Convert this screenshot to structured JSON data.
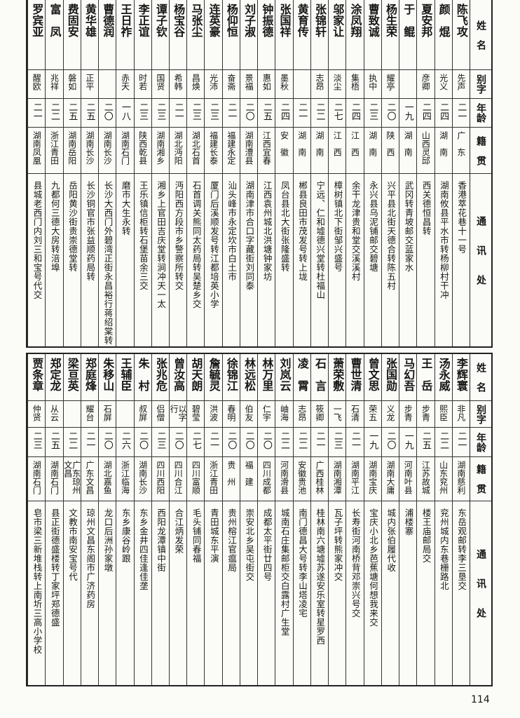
{
  "headers": {
    "name": "姓　名",
    "alias": "别字",
    "age": "年龄",
    "native": "籍　贯",
    "address": "通讯处"
  },
  "top_table": [
    {
      "name": "陈飞攻",
      "alias": "先声",
      "age": "二一",
      "native": "广　东",
      "address": "香港萃花巷十一号"
    },
    {
      "name": "颜　焜",
      "alias": "光义",
      "age": "二四",
      "native": "湖　南",
      "address": "湖南攸县平水市转杨柳村干冲"
    },
    {
      "name": "夏安邦",
      "alias": "彦卿",
      "age": "二四",
      "native": "山西灵邱",
      "address": "西关德恒昌转"
    },
    {
      "name": "于　鲲",
      "alias": "",
      "age": "一九",
      "native": "湖　南",
      "address": "武冈转青坡邮交蓝家水"
    },
    {
      "name": "杨生荣",
      "alias": "耀亭",
      "age": "二〇",
      "native": "陕　西",
      "address": "兴平县北街天德合转陈五村"
    },
    {
      "name": "曹致诚",
      "alias": "执中",
      "age": "二三",
      "native": "湖　南",
      "address": "永兴县乌泥铺邮交碧塘"
    },
    {
      "name": "涂凤翔",
      "alias": "集梧",
      "age": "二四",
      "native": "江　西",
      "address": "余干龙津贵和堂交溪溪村"
    },
    {
      "name": "邬家让",
      "alias": "淡尘",
      "age": "二七",
      "native": "江　西",
      "address": "樟树镇北下街邹兴盛号"
    },
    {
      "name": "张锦轩",
      "alias": "志昂",
      "age": "二二",
      "native": "湖　南",
      "address": "宁远、仁和墟德兴堂转杜福山"
    },
    {
      "name": "黄育传",
      "alias": "",
      "age": "二一",
      "native": "湖　南",
      "address": "郴县良田市茂发号转上垅"
    },
    {
      "name": "张国祥",
      "alias": "墨秋",
      "age": "二四",
      "native": "安　徽",
      "address": "凤台县北大街张隆盛转"
    },
    {
      "name": "钟振德",
      "alias": "惠如",
      "age": "二五",
      "native": "江西宜春",
      "address": "江西袁州城北洪塘钟家坊"
    },
    {
      "name": "刘子淑",
      "alias": "景福",
      "age": "二〇",
      "native": "湖南澧县",
      "address": "湖南津市合口字藏街刘同泰"
    },
    {
      "name": "杨仰恒",
      "alias": "奋斋",
      "age": "二一",
      "native": "福建永定",
      "address": "汕头峰市永定坎市白土市"
    },
    {
      "name": "连英豪",
      "alias": "光沛",
      "age": "二三",
      "native": "福建长泰",
      "address": "厦门后溪顺发号转江都培英小学"
    },
    {
      "name": "马张尘",
      "alias": "昌焕",
      "age": "二三",
      "native": "湖北石首",
      "address": "石首调关熊同太药局转吴楚乡交"
    },
    {
      "name": "杨宝谷",
      "alias": "希韩",
      "age": "二一",
      "native": "湖北沔阳",
      "address": "沔阳西方段市乡警察所转交"
    },
    {
      "name": "谭子钦",
      "alias": "国贤",
      "age": "二三",
      "native": "湖南湘乡",
      "address": "湘乡上官田吉庆堂转涧冲天一太"
    },
    {
      "name": "李正谊",
      "alias": "时若",
      "age": "二三",
      "native": "陕西乾县",
      "address": "王乐镇信柜转石堡苗余三交"
    },
    {
      "name": "王日祚",
      "alias": "赤天",
      "age": "一八",
      "native": "湖南石门",
      "address": "磨市大生永转"
    },
    {
      "name": "曹德润",
      "alias": "",
      "age": "二〇",
      "native": "湖南长沙",
      "address": "长沙大西门外碧湾正街永昌裕行蒋绍棠转"
    },
    {
      "name": "黄华雄",
      "alias": "正平",
      "age": "二五",
      "native": "湖南长沙",
      "address": "长沙铜官市张益顺药局转"
    },
    {
      "name": "费固安",
      "alias": "磐如",
      "age": "二五",
      "native": "湖南岳阳",
      "address": "岳阳黄沙街贵崇德堂转"
    },
    {
      "name": "富　凤",
      "alias": "兆祥",
      "age": "二二",
      "native": "浙江青田",
      "address": "九都何三德大房转涪埠"
    },
    {
      "name": "罗宾亚",
      "alias": "醒欧",
      "age": "二一",
      "native": "湖南凤凰",
      "address": "县城老西门内刘三和宝号代交"
    }
  ],
  "bottom_table": [
    {
      "name": "李辉寰",
      "alias": "非凡",
      "age": "二一",
      "native": "湖南慈利",
      "address": "东岳观邮转李三垦交"
    },
    {
      "name": "汤永威",
      "alias": "熙臣",
      "age": "二二",
      "native": "山东兖州",
      "address": "兖州城内东巷栅路北"
    },
    {
      "name": "王　岳",
      "alias": "步青",
      "age": "二五",
      "native": "江苏故城",
      "address": "楼王庙邮局交"
    },
    {
      "name": "马幻吾",
      "alias": "步青",
      "age": "一九",
      "native": "河南叶县",
      "address": "浦楼寨"
    },
    {
      "name": "张国勋",
      "alias": "义龙",
      "age": "二〇",
      "native": "湖南大庸",
      "address": "城内张伯履代收"
    },
    {
      "name": "曾文思",
      "alias": "荣五",
      "age": "一九",
      "native": "湖南宝庆",
      "address": "宝庆小北乡芭蕉塘何想我来交"
    },
    {
      "name": "曹世清",
      "alias": "石清",
      "age": "二一",
      "native": "湖南平江",
      "address": "长寿街河南桥背邓崇兴号交"
    },
    {
      "name": "萧荣敷",
      "alias": "一飞",
      "age": "二三",
      "native": "湖南湘潭",
      "address": "瓦子坪转熊家冲交"
    },
    {
      "name": "石　言",
      "alias": "筱卿",
      "age": "二一",
      "native": "广西桂林",
      "address": "桂林南六塘墟苏遂安乐室转星罗西"
    },
    {
      "name": "凌　霄",
      "alias": "志昂",
      "age": "二二",
      "native": "安徽贵池",
      "address": "南门德昌大号转李山塔凌宅"
    },
    {
      "name": "刘岚云",
      "alias": "岫海",
      "age": "二二",
      "native": "河南滑县",
      "address": "城南石庄集邮柜交白露村广生堂"
    },
    {
      "name": "林万里",
      "alias": "仁宇",
      "age": "二〇",
      "native": "四川成都",
      "address": "成都太平街廿四号"
    },
    {
      "name": "林远松",
      "alias": "伯友",
      "age": "二〇",
      "native": "福　建",
      "address": "崇安北乡吴屯街交"
    },
    {
      "name": "徐锦江",
      "alias": "春明",
      "age": "二〇",
      "native": "贵　州",
      "address": "贵州榕江官瘟局"
    },
    {
      "name": "詹毓灵",
      "alias": "洪波",
      "age": "二一",
      "native": "浙江青田",
      "address": "青田城东平演"
    },
    {
      "name": "胡天朗",
      "alias": "碧莹",
      "age": "二七",
      "native": "四川富顺",
      "address": "毛头铺同春福"
    },
    {
      "name": "曾汝高",
      "alias": "以字行",
      "age": "二〇",
      "native": "四川合江",
      "address": "合江炳发荣"
    },
    {
      "name": "张兆危",
      "alias": "侣僧",
      "age": "二三",
      "native": "四川西阳",
      "address": "西阳龙潭镇中街"
    },
    {
      "name": "朱　村",
      "alias": "叔屏",
      "age": "二〇",
      "native": "湖南长沙",
      "address": "东乡金井四佳逢佳垄"
    },
    {
      "name": "王辅臣",
      "alias": "",
      "age": "二六",
      "native": "浙江临海",
      "address": "东乡康谷岭跟"
    },
    {
      "name": "朱移山",
      "alias": "石屏",
      "age": "二〇",
      "native": "湖北嘉鱼",
      "address": "龙口后洲孙家墩"
    },
    {
      "name": "郑庭烽",
      "alias": "耀台",
      "age": "二一",
      "native": "广东文昌",
      "address": "琼州文昌东阁市广济药房"
    },
    {
      "name": "梁亘英",
      "alias": "",
      "age": "二二",
      "native": "广东琼州文昌",
      "address": "文教市南安宝号代"
    },
    {
      "name": "郑定龙",
      "alias": "从云",
      "age": "二五",
      "native": "湖南石门",
      "address": "县正街德盛楼转丁家坪郑德盛"
    },
    {
      "name": "贾条章",
      "alias": "仲贤",
      "age": "二三",
      "native": "湖南石门",
      "address": "皂市梁三新堆栈转上南圻三高小学校"
    }
  ],
  "page_number": "114"
}
